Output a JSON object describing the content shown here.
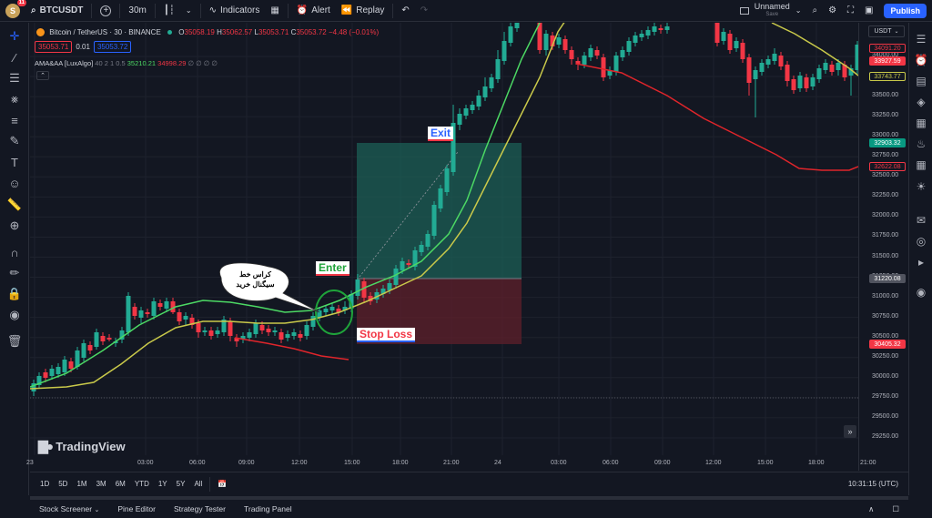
{
  "topbar": {
    "avatar_letter": "S",
    "avatar_badge": "11",
    "symbol": "BTCUSDT",
    "interval": "30m",
    "indicators_label": "Indicators",
    "alert_label": "Alert",
    "replay_label": "Replay",
    "layout_name": "Unnamed",
    "layout_status": "Save",
    "publish_label": "Publish"
  },
  "legend": {
    "title": "Bitcoin / TetherUS · 30 · BINANCE",
    "o_label": "O",
    "o_value": "35058.19",
    "h_label": "H",
    "h_value": "35062.57",
    "l_label": "L",
    "l_value": "35053.71",
    "c_label": "C",
    "c_value": "35053.72",
    "change": "−4.48 (−0.01%)",
    "bid": "35053.71",
    "spread": "0.01",
    "ask": "35053.72",
    "indicator_name": "AMA&AA [LuxAlgo]",
    "indicator_params": "40 2 1 0.5",
    "indicator_v1": "35210.21",
    "indicator_v2": "34998.29",
    "indicator_rest": "∅ ∅ ∅ ∅"
  },
  "price_axis": {
    "currency": "USDT",
    "labels": [
      "34000.00",
      "33750.00",
      "33500.00",
      "33250.00",
      "33000.00",
      "32750.00",
      "32500.00",
      "32250.00",
      "32000.00",
      "31750.00",
      "31500.00",
      "31250.00",
      "31000.00",
      "30750.00",
      "30500.00",
      "30250.00",
      "30000.00",
      "29750.00",
      "29500.00",
      "29250.00"
    ],
    "tag_top_red": "34091.20",
    "tag_current": "33927.59",
    "tag_yellow": "33743.77",
    "tag_target": "32903.32",
    "tag_red_line": "32622.08",
    "tag_entry": "31220.08",
    "tag_stop": "30405.32"
  },
  "time_axis": {
    "labels": [
      "23",
      "03:00",
      "06:00",
      "09:00",
      "12:00",
      "15:00",
      "18:00",
      "21:00",
      "24",
      "03:00",
      "06:00",
      "09:00",
      "12:00",
      "15:00",
      "18:00",
      "21:00"
    ],
    "clock": "10:31:15 (UTC)"
  },
  "ranges": [
    "1D",
    "5D",
    "1M",
    "3M",
    "6M",
    "YTD",
    "1Y",
    "5Y",
    "All"
  ],
  "panel_tabs": [
    "Stock Screener",
    "Pine Editor",
    "Strategy Tester",
    "Trading Panel"
  ],
  "annotations": {
    "exit": "Exit",
    "enter": "Enter",
    "stop_loss": "Stop Loss",
    "bubble_line1": "کراس خط",
    "bubble_line2": "سیگنال خرید"
  },
  "watermark": "TradingView",
  "colors": {
    "up": "#22ab94",
    "down": "#f23645",
    "green_line": "#4cd964",
    "yellow_line": "#c9c94a",
    "red_line": "#e0252b",
    "accent": "#2962ff"
  }
}
